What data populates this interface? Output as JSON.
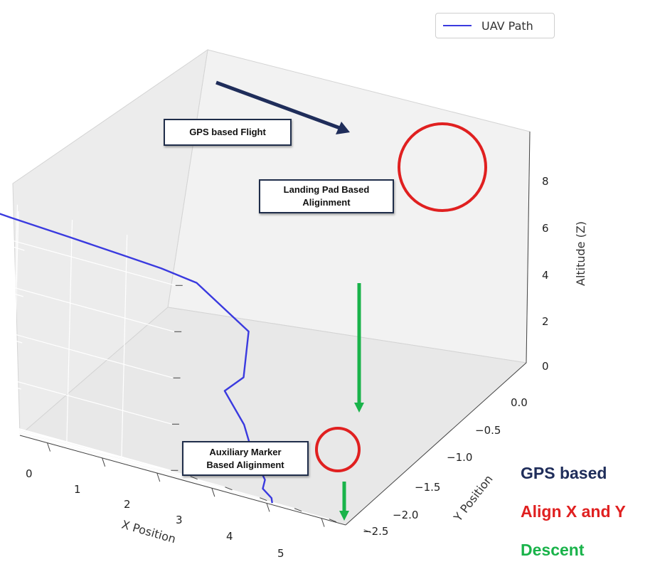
{
  "chart_data": {
    "type": "line3d",
    "series": [
      {
        "name": "UAV Path",
        "color": "#3a3adf",
        "points_xyz": [
          [
            -0.4,
            -0.02,
            9.3
          ],
          [
            1.3,
            0.0,
            9.2
          ],
          [
            2.5,
            -0.02,
            9.0
          ],
          [
            3.6,
            -0.02,
            8.85
          ],
          [
            4.6,
            -0.04,
            8.7
          ],
          [
            5.2,
            -0.06,
            8.6
          ],
          [
            5.8,
            -0.1,
            8.4
          ],
          [
            5.75,
            -0.9,
            7.0
          ],
          [
            5.3,
            -1.2,
            5.0
          ],
          [
            4.9,
            -1.25,
            4.2
          ],
          [
            4.95,
            -1.5,
            3.0
          ],
          [
            5.0,
            -1.6,
            1.8
          ],
          [
            5.1,
            -1.7,
            0.9
          ],
          [
            5.0,
            -1.75,
            0.5
          ],
          [
            5.1,
            -1.8,
            0.2
          ],
          [
            5.05,
            -1.85,
            0.0
          ]
        ]
      }
    ],
    "xlabel": "X Position",
    "ylabel": "Y Position",
    "zlabel": "Altitude (Z)",
    "xticks": [
      "0",
      "1",
      "2",
      "3",
      "4",
      "5"
    ],
    "yticks": [
      "0.0",
      "−0.5",
      "−1.0",
      "−1.5",
      "−2.0",
      "−2.5"
    ],
    "zticks": [
      "0",
      "2",
      "4",
      "6",
      "8"
    ],
    "legend_position": "top-right",
    "grid": true
  },
  "annotations": {
    "gps_flight": "GPS based Flight",
    "landing_pad_line1": "Landing Pad Based",
    "landing_pad_line2": "Aliginment",
    "aux_marker_line1": "Auxiliary Marker",
    "aux_marker_line2": "Based Aliginment"
  },
  "key": {
    "gps": {
      "label": "GPS based",
      "color": "#1f2d5a"
    },
    "align": {
      "label": "Align X and Y",
      "color": "#e02020"
    },
    "descent": {
      "label": "Descent",
      "color": "#19b34a"
    }
  }
}
